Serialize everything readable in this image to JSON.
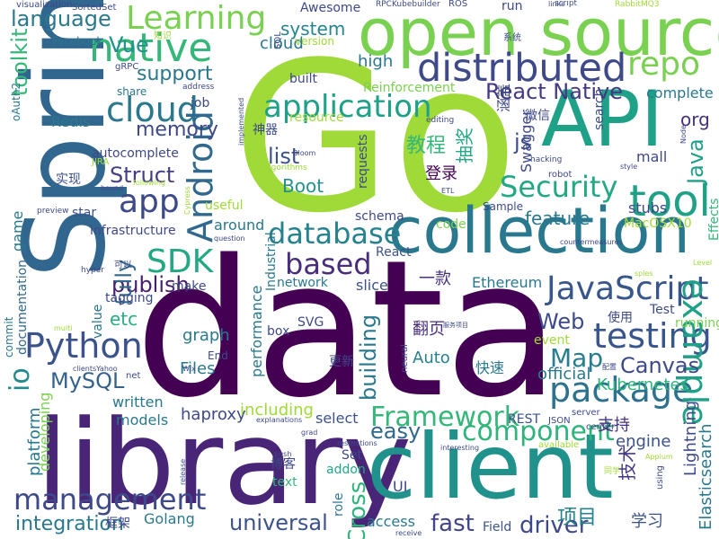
{
  "words": [
    {
      "text": "Go",
      "color": "#a0da39"
    },
    {
      "text": "data",
      "color": "#440154"
    },
    {
      "text": "library",
      "color": "#482576"
    },
    {
      "text": "Spring",
      "color": "#31668e"
    },
    {
      "text": "client",
      "color": "#21918c"
    },
    {
      "text": "open source",
      "color": "#7ad151"
    },
    {
      "text": "collection",
      "color": "#2a788e"
    },
    {
      "text": "API",
      "color": "#1fa187"
    },
    {
      "text": "distributed",
      "color": "#3e4989"
    },
    {
      "text": "Learning",
      "color": "#7ad151"
    },
    {
      "text": "native",
      "color": "#35b779"
    },
    {
      "text": "language",
      "color": "#2a788e"
    },
    {
      "text": "repo",
      "color": "#7ad151"
    },
    {
      "text": "cloud",
      "color": "#2a788e"
    },
    {
      "text": "application",
      "color": "#1fa187"
    },
    {
      "text": "React Native",
      "color": "#443983"
    },
    {
      "text": "app",
      "color": "#3e4989"
    },
    {
      "text": "Android",
      "color": "#31688e"
    },
    {
      "text": "Security",
      "color": "#22a884"
    },
    {
      "text": "tool",
      "color": "#1fa187"
    },
    {
      "text": "database",
      "color": "#26828e"
    },
    {
      "text": "SDK",
      "color": "#22a884"
    },
    {
      "text": "based",
      "color": "#472d7b"
    },
    {
      "text": "JavaScript",
      "color": "#39568c"
    },
    {
      "text": "Python",
      "color": "#3b528b"
    },
    {
      "text": "testing",
      "color": "#39568c"
    },
    {
      "text": "package",
      "color": "#2c718e"
    },
    {
      "text": "management",
      "color": "#3e4989"
    },
    {
      "text": "example",
      "color": "#1fa187"
    },
    {
      "text": "component",
      "color": "#2fb47c"
    },
    {
      "text": "Framework",
      "color": "#35b779"
    },
    {
      "text": "io",
      "color": "#238a8d"
    },
    {
      "text": "MySQL",
      "color": "#33638d"
    },
    {
      "text": "Map",
      "color": "#287d8e"
    },
    {
      "text": "Web",
      "color": "#3e4989"
    },
    {
      "text": "Canvas",
      "color": "#3e4989"
    },
    {
      "text": "driver",
      "color": "#3e4989"
    },
    {
      "text": "universal",
      "color": "#3b528b"
    },
    {
      "text": "fast",
      "color": "#414487"
    },
    {
      "text": "Cross",
      "color": "#2fb47c"
    },
    {
      "text": "integration",
      "color": "#2a788e"
    },
    {
      "text": "building",
      "color": "#2a788e"
    },
    {
      "text": "memory",
      "color": "#3e4989"
    },
    {
      "text": "Struct",
      "color": "#433e85"
    },
    {
      "text": "Boot",
      "color": "#21918c"
    },
    {
      "text": "list",
      "color": "#3b528b"
    },
    {
      "text": "js",
      "color": "#3e4989"
    },
    {
      "text": "Java",
      "color": "#1f9e89"
    },
    {
      "text": "org",
      "color": "#46327e"
    },
    {
      "text": "feature",
      "color": "#2a788e"
    },
    {
      "text": "publish",
      "color": "#481f70"
    },
    {
      "text": "fully",
      "color": "#31688e"
    },
    {
      "text": "etc",
      "color": "#27ad81"
    },
    {
      "text": "system",
      "color": "#25848e"
    },
    {
      "text": "support",
      "color": "#2a788e"
    },
    {
      "text": "Vue",
      "color": "#21918c"
    },
    {
      "text": "toolkit",
      "color": "#35b779"
    },
    {
      "text": "high",
      "color": "#2a788e"
    },
    {
      "text": "Redis",
      "color": "#2a788e"
    },
    {
      "text": "cloud",
      "color": "#2a788e"
    },
    {
      "text": "easy",
      "color": "#31688e"
    },
    {
      "text": "Files",
      "color": "#2a788e"
    },
    {
      "text": "graph",
      "color": "#2a788e"
    },
    {
      "text": "haproxy",
      "color": "#3e4989"
    },
    {
      "text": "Auto",
      "color": "#26828e"
    },
    {
      "text": "official",
      "color": "#2a788e"
    },
    {
      "text": "Kubernetes",
      "color": "#2fb47c"
    },
    {
      "text": "Elasticsearch",
      "color": "#2a788e"
    },
    {
      "text": "Lightning",
      "color": "#3e4989"
    },
    {
      "text": "REST",
      "color": "#3b528b"
    },
    {
      "text": "engine",
      "color": "#3b528b"
    },
    {
      "text": "学习",
      "color": "#3b528b"
    },
    {
      "text": "项目",
      "color": "#26828e"
    },
    {
      "text": "技术",
      "color": "#443983"
    },
    {
      "text": "支持",
      "color": "#46327e"
    },
    {
      "text": "快速",
      "color": "#2a788e"
    },
    {
      "text": "更新",
      "color": "#3e4989"
    },
    {
      "text": "翻页",
      "color": "#472d7b"
    },
    {
      "text": "一款",
      "color": "#46327e"
    },
    {
      "text": "登录",
      "color": "#440154"
    },
    {
      "text": "教程",
      "color": "#35b779"
    },
    {
      "text": "抽奖",
      "color": "#22a884"
    },
    {
      "text": "微信",
      "color": "#3e4989"
    },
    {
      "text": "实现",
      "color": "#3b528b"
    },
    {
      "text": "涵盖",
      "color": "#3e4989"
    },
    {
      "text": "神器",
      "color": "#3e4989"
    },
    {
      "text": "Swagger",
      "color": "#3e4989"
    },
    {
      "text": "search",
      "color": "#3e4989"
    },
    {
      "text": "mall",
      "color": "#3e4989"
    },
    {
      "text": "stubs",
      "color": "#3e4989"
    },
    {
      "text": "complete",
      "color": "#2a788e"
    },
    {
      "text": "Effects",
      "color": "#35b779"
    },
    {
      "text": "MacOSX10",
      "color": "#a0da39"
    },
    {
      "text": "game",
      "color": "#2a788e"
    },
    {
      "text": "documentation",
      "color": "#31688e"
    },
    {
      "text": "platform",
      "color": "#2a788e"
    },
    {
      "text": "developing",
      "color": "#7ad151"
    },
    {
      "text": "commit",
      "color": "#2a788e"
    },
    {
      "text": "written",
      "color": "#2a788e"
    },
    {
      "text": "models",
      "color": "#2a788e"
    },
    {
      "text": "including",
      "color": "#a0da39"
    },
    {
      "text": "select",
      "color": "#3b528b"
    },
    {
      "text": "role",
      "color": "#2a788e"
    },
    {
      "text": "addon",
      "color": "#22a884"
    },
    {
      "text": "Set",
      "color": "#3e4989"
    },
    {
      "text": "text",
      "color": "#35b779"
    },
    {
      "text": "UI",
      "color": "#3e4989"
    },
    {
      "text": "access",
      "color": "#2a788e"
    },
    {
      "text": "Field",
      "color": "#3b528b"
    },
    {
      "text": "Golang",
      "color": "#2a788e"
    },
    {
      "text": "框架",
      "color": "#3e4989"
    },
    {
      "text": "博客",
      "color": "#3e4989"
    },
    {
      "text": "SVG",
      "color": "#3e4989"
    },
    {
      "text": "box",
      "color": "#3e4989"
    },
    {
      "text": "performance",
      "color": "#2a788e"
    },
    {
      "text": "network",
      "color": "#2a788e"
    },
    {
      "text": "slice",
      "color": "#3b528b"
    },
    {
      "text": "Ethereum",
      "color": "#2a788e"
    },
    {
      "text": "Test",
      "color": "#3e4989"
    },
    {
      "text": "使用",
      "color": "#3e4989"
    },
    {
      "text": "event",
      "color": "#a0da39"
    },
    {
      "text": "running",
      "color": "#7ad151"
    },
    {
      "text": "React",
      "color": "#3b528b"
    },
    {
      "text": "make",
      "color": "#3e4989"
    },
    {
      "text": "Industrial",
      "color": "#2a788e"
    },
    {
      "text": "value",
      "color": "#2a788e"
    },
    {
      "text": "tagging",
      "color": "#3e4989"
    },
    {
      "text": "around",
      "color": "#2a788e"
    },
    {
      "text": "infrastructure",
      "color": "#3e4989"
    },
    {
      "text": "useful",
      "color": "#a0da39"
    },
    {
      "text": "star",
      "color": "#3b528b"
    },
    {
      "text": "schema",
      "color": "#3e4989"
    },
    {
      "text": "code",
      "color": "#7ad151"
    },
    {
      "text": "Sample",
      "color": "#3e4989"
    },
    {
      "text": "requests",
      "color": "#3e4989"
    },
    {
      "text": "job",
      "color": "#3e4989"
    },
    {
      "text": "resource",
      "color": "#a0da39"
    },
    {
      "text": "Reinforcement",
      "color": "#7ad151"
    },
    {
      "text": "built",
      "color": "#3e4989"
    },
    {
      "text": "Awesome",
      "color": "#3e4989"
    },
    {
      "text": "version",
      "color": "#a0da39"
    },
    {
      "text": "autocomplete",
      "color": "#3e4989"
    },
    {
      "text": "share",
      "color": "#2a788e"
    },
    {
      "text": "Facebook",
      "color": "#2a788e"
    },
    {
      "text": "gRPC",
      "color": "#3e4989"
    },
    {
      "text": "oAuth2",
      "color": "#2a788e"
    },
    {
      "text": "visualization",
      "color": "#3e4989"
    },
    {
      "text": "SortedSet",
      "color": "#3e4989"
    },
    {
      "text": "RPCKubebuilder",
      "color": "#3e4989"
    },
    {
      "text": "ROS",
      "color": "#3e4989"
    },
    {
      "text": "run",
      "color": "#3e4989"
    },
    {
      "text": "links",
      "color": "#3e4989"
    },
    {
      "text": "script",
      "color": "#3e4989"
    },
    {
      "text": "RabbitMQ3",
      "color": "#a0da39"
    },
    {
      "text": "系统",
      "color": "#3e4989"
    },
    {
      "text": "知识",
      "color": "#a0da39"
    },
    {
      "text": "SQL",
      "color": "#3e4989"
    },
    {
      "text": "address",
      "color": "#3e4989"
    },
    {
      "text": "editing",
      "color": "#3e4989"
    },
    {
      "text": "Bloom",
      "color": "#3e4989"
    },
    {
      "text": "implemented",
      "color": "#3e4989"
    },
    {
      "text": "Algorithms",
      "color": "#a0da39"
    },
    {
      "text": "hacking",
      "color": "#3e4989"
    },
    {
      "text": "robot",
      "color": "#3e4989"
    },
    {
      "text": "style",
      "color": "#3e4989"
    },
    {
      "text": "Node",
      "color": "#3e4989"
    },
    {
      "text": "JIRA",
      "color": "#a0da39"
    },
    {
      "text": "bound",
      "color": "#3e4989"
    },
    {
      "text": "following",
      "color": "#a0da39"
    },
    {
      "text": "preview",
      "color": "#3e4989"
    },
    {
      "text": "ETL",
      "color": "#3e4989"
    },
    {
      "text": "Cypress",
      "color": "#a0da39"
    },
    {
      "text": "countermeasures",
      "color": "#3e4989"
    },
    {
      "text": "question",
      "color": "#3e4989"
    },
    {
      "text": "hyper",
      "color": "#3e4989"
    },
    {
      "text": "可以",
      "color": "#3e4989"
    },
    {
      "text": "spies",
      "color": "#a0da39"
    },
    {
      "text": "Level",
      "color": "#a0da39"
    },
    {
      "text": "Wix",
      "color": "#3e4989"
    },
    {
      "text": "clientsYahoo",
      "color": "#3e4989"
    },
    {
      "text": "服务项目",
      "color": "#3e4989"
    },
    {
      "text": "net",
      "color": "#3e4989"
    },
    {
      "text": "explanations",
      "color": "#3e4989"
    },
    {
      "text": "grad",
      "color": "#3e4989"
    },
    {
      "text": "push",
      "color": "#3e4989"
    },
    {
      "text": "restrictions",
      "color": "#3e4989"
    },
    {
      "text": "release",
      "color": "#3e4989"
    },
    {
      "text": "interesting",
      "color": "#3e4989"
    },
    {
      "text": "receive",
      "color": "#3e4989"
    },
    {
      "text": "available",
      "color": "#a0da39"
    },
    {
      "text": "server",
      "color": "#3e4989"
    },
    {
      "text": "JSON",
      "color": "#3e4989"
    },
    {
      "text": "center",
      "color": "#3e4989"
    },
    {
      "text": "Appium",
      "color": "#a0da39"
    },
    {
      "text": "同学",
      "color": "#a0da39"
    },
    {
      "text": "using",
      "color": "#3e4989"
    },
    {
      "text": "配置",
      "color": "#3e4989"
    },
    {
      "text": "End",
      "color": "#3e4989"
    },
    {
      "text": "multi",
      "color": "#a0da39"
    },
    {
      "text": "neural",
      "color": "#3e4989"
    }
  ]
}
